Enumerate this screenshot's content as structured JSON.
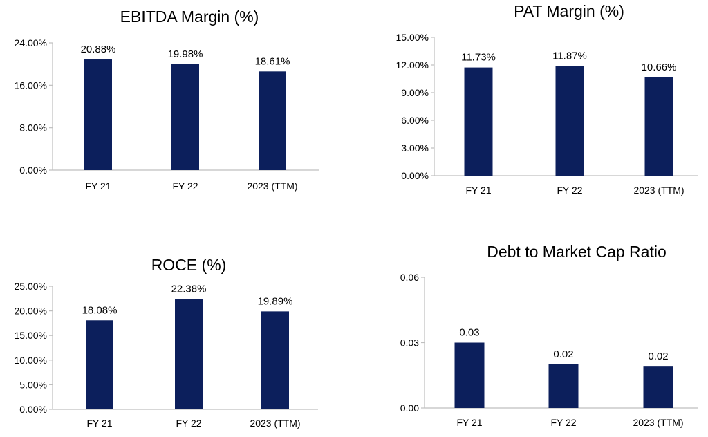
{
  "bar_color": "#0c1f5c",
  "chart_data": [
    {
      "type": "bar",
      "title": "EBITDA Margin (%)",
      "categories": [
        "FY 21",
        "FY 22",
        "2023 (TTM)"
      ],
      "values": [
        20.88,
        19.98,
        18.61
      ],
      "data_labels": [
        "20.88%",
        "19.98%",
        "18.61%"
      ],
      "yticks": [
        0,
        8,
        16,
        24
      ],
      "ytick_labels": [
        "0.00%",
        "8.00%",
        "16.00%",
        "24.00%"
      ],
      "ylim": [
        0,
        24
      ],
      "xlabel": "",
      "ylabel": "",
      "grid": false
    },
    {
      "type": "bar",
      "title": "PAT Margin (%)",
      "categories": [
        "FY 21",
        "FY 22",
        "2023 (TTM)"
      ],
      "values": [
        11.73,
        11.87,
        10.66
      ],
      "data_labels": [
        "11.73%",
        "11.87%",
        "10.66%"
      ],
      "yticks": [
        0,
        3,
        6,
        9,
        12,
        15
      ],
      "ytick_labels": [
        "0.00%",
        "3.00%",
        "6.00%",
        "9.00%",
        "12.00%",
        "15.00%"
      ],
      "ylim": [
        0,
        15
      ],
      "xlabel": "",
      "ylabel": "",
      "grid": false
    },
    {
      "type": "bar",
      "title": "ROCE (%)",
      "categories": [
        "FY 21",
        "FY 22",
        "2023 (TTM)"
      ],
      "values": [
        18.08,
        22.38,
        19.89
      ],
      "data_labels": [
        "18.08%",
        "22.38%",
        "19.89%"
      ],
      "yticks": [
        0,
        5,
        10,
        15,
        20,
        25
      ],
      "ytick_labels": [
        "0.00%",
        "5.00%",
        "10.00%",
        "15.00%",
        "20.00%",
        "25.00%"
      ],
      "ylim": [
        0,
        25
      ],
      "xlabel": "",
      "ylabel": "",
      "grid": false
    },
    {
      "type": "bar",
      "title": "Debt to Market Cap Ratio",
      "categories": [
        "FY 21",
        "FY 22",
        "2023 (TTM)"
      ],
      "values": [
        0.03,
        0.02,
        0.019
      ],
      "data_labels": [
        "0.03",
        "0.02",
        "0.02"
      ],
      "yticks": [
        0,
        0.03,
        0.06
      ],
      "ytick_labels": [
        "0.00",
        "0.03",
        "0.06"
      ],
      "ylim": [
        0,
        0.06
      ],
      "xlabel": "",
      "ylabel": "",
      "grid": false
    }
  ]
}
